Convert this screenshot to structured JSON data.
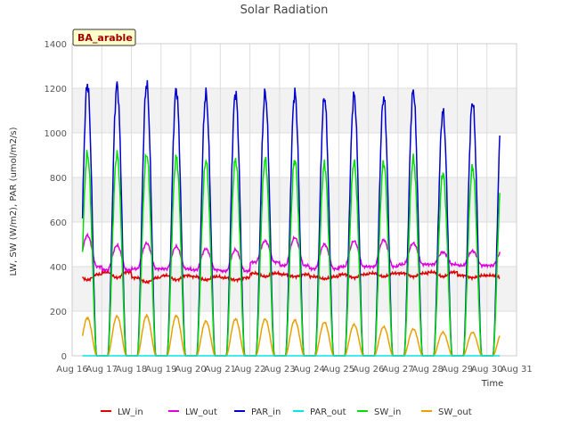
{
  "chart_data": {
    "type": "line",
    "title": "Solar Radiation",
    "site_label": "BA_arable",
    "xlabel": "Time",
    "ylabel": "LW, SW (W/m2), PAR (umol/m2/s)",
    "xlim": [
      16,
      31
    ],
    "ylim": [
      0,
      1400
    ],
    "x_ticks": [
      16,
      17,
      18,
      19,
      20,
      21,
      22,
      23,
      24,
      25,
      26,
      27,
      28,
      29,
      30,
      31
    ],
    "x_tick_labels": [
      "Aug 16",
      "Aug 17",
      "Aug 18",
      "Aug 19",
      "Aug 20",
      "Aug 21",
      "Aug 22",
      "Aug 23",
      "Aug 24",
      "Aug 25",
      "Aug 26",
      "Aug 27",
      "Aug 28",
      "Aug 29",
      "Aug 30",
      "Aug 31"
    ],
    "y_ticks": [
      0,
      200,
      400,
      600,
      800,
      1000,
      1200,
      1400
    ],
    "y_tick_labels": [
      "0",
      "200",
      "400",
      "600",
      "800",
      "1000",
      "1200",
      "1400"
    ],
    "grid": true,
    "banded_background": true,
    "legend_position": "bottom",
    "data_start": 16.35,
    "data_end": 30.45,
    "days": [
      16,
      17,
      18,
      19,
      20,
      21,
      22,
      23,
      24,
      25,
      26,
      27,
      28,
      29
    ],
    "series": [
      {
        "name": "LW_in",
        "color": "#dd0000",
        "daily_base": [
          365,
          375,
          350,
          360,
          355,
          350,
          370,
          365,
          355,
          365,
          370,
          370,
          375,
          360
        ],
        "daily_amplitude": [
          -25,
          -25,
          -20,
          -20,
          -15,
          -10,
          -15,
          -10,
          -10,
          -15,
          -15,
          -15,
          -20,
          -10
        ]
      },
      {
        "name": "LW_out",
        "color": "#dd00dd",
        "daily_base": [
          400,
          385,
          390,
          390,
          385,
          380,
          420,
          405,
          390,
          400,
          400,
          410,
          410,
          405
        ],
        "daily_amplitude": [
          140,
          110,
          115,
          100,
          95,
          95,
          95,
          125,
          110,
          115,
          120,
          95,
          55,
          65
        ]
      },
      {
        "name": "PAR_in",
        "color": "#0000cc",
        "daily_peak": [
          1220,
          1215,
          1220,
          1195,
          1175,
          1180,
          1180,
          1180,
          1160,
          1170,
          1160,
          1190,
          1095,
          1140
        ]
      },
      {
        "name": "PAR_out",
        "color": "#00e5e5",
        "daily_peak": [
          0,
          0,
          0,
          0,
          0,
          0,
          0,
          0,
          0,
          0,
          0,
          0,
          0,
          0
        ]
      },
      {
        "name": "SW_in",
        "color": "#00dd00",
        "daily_peak": [
          905,
          905,
          905,
          890,
          875,
          880,
          880,
          880,
          860,
          870,
          865,
          885,
          820,
          845
        ]
      },
      {
        "name": "SW_out",
        "color": "#e8a000",
        "daily_peak": [
          170,
          178,
          180,
          180,
          155,
          165,
          165,
          160,
          150,
          140,
          130,
          120,
          105,
          105
        ]
      }
    ]
  }
}
